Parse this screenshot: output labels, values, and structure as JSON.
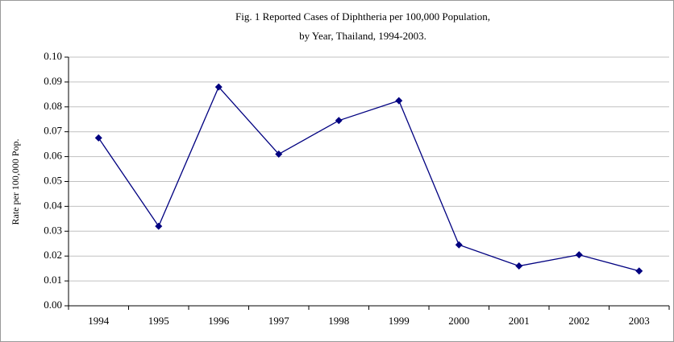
{
  "chart_data": {
    "type": "line",
    "title": "Fig. 1  Reported Cases of Diphtheria per 100,000 Population,",
    "subtitle": "by Year, Thailand, 1994-2003.",
    "y_label": "Rate per 100,000 Pop.",
    "categories": [
      "1994",
      "1995",
      "1996",
      "1997",
      "1998",
      "1999",
      "2000",
      "2001",
      "2002",
      "2003"
    ],
    "series": [
      {
        "color": "#000080",
        "values": [
          0.0675,
          0.032,
          0.088,
          0.061,
          0.0745,
          0.0825,
          0.0245,
          0.016,
          0.0205,
          0.014
        ]
      }
    ],
    "ylim": [
      0,
      0.1
    ],
    "yticks": [
      {
        "value": 0,
        "label": "0.00"
      },
      {
        "value": 0.01,
        "label": "0.01"
      },
      {
        "value": 0.02,
        "label": "0.02"
      },
      {
        "value": 0.03,
        "label": "0.03"
      },
      {
        "value": 0.04,
        "label": "0.04"
      },
      {
        "value": 0.05,
        "label": "0.05"
      },
      {
        "value": 0.06,
        "label": "0.06"
      },
      {
        "value": 0.07,
        "label": "0.07"
      },
      {
        "value": 0.08,
        "label": "0.08"
      },
      {
        "value": 0.09,
        "label": "0.09"
      },
      {
        "value": 0.1,
        "label": "0.10"
      }
    ],
    "grid": true
  }
}
